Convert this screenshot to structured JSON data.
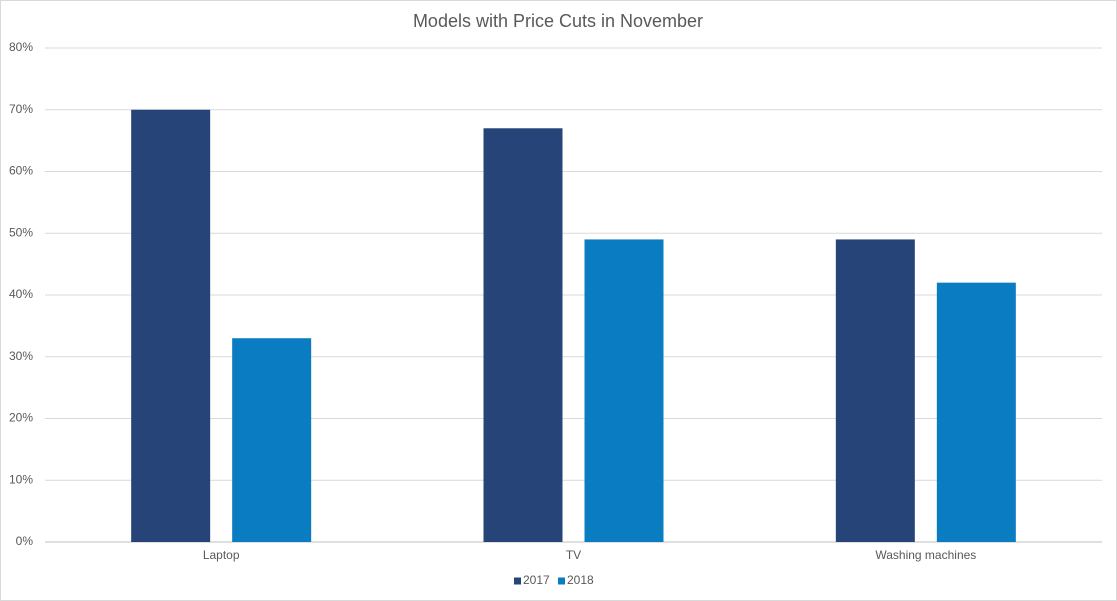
{
  "chart_data": {
    "type": "bar",
    "title": "Models with Price Cuts in November",
    "categories": [
      "Laptop",
      "TV",
      "Washing machines"
    ],
    "series": [
      {
        "name": "2017",
        "color": "#264478",
        "values": [
          70,
          67,
          49
        ]
      },
      {
        "name": "2018",
        "color": "#0a7dc2",
        "values": [
          33,
          49,
          42
        ]
      }
    ],
    "ylim": [
      0,
      80
    ],
    "yticks": [
      {
        "value": 0,
        "label": "0%"
      },
      {
        "value": 10,
        "label": "10%"
      },
      {
        "value": 20,
        "label": "20%"
      },
      {
        "value": 30,
        "label": "30%"
      },
      {
        "value": 40,
        "label": "40%"
      },
      {
        "value": 50,
        "label": "50%"
      },
      {
        "value": 60,
        "label": "60%"
      },
      {
        "value": 70,
        "label": "70%"
      },
      {
        "value": 80,
        "label": "80%"
      }
    ],
    "grid": true,
    "legend": "bottom"
  }
}
